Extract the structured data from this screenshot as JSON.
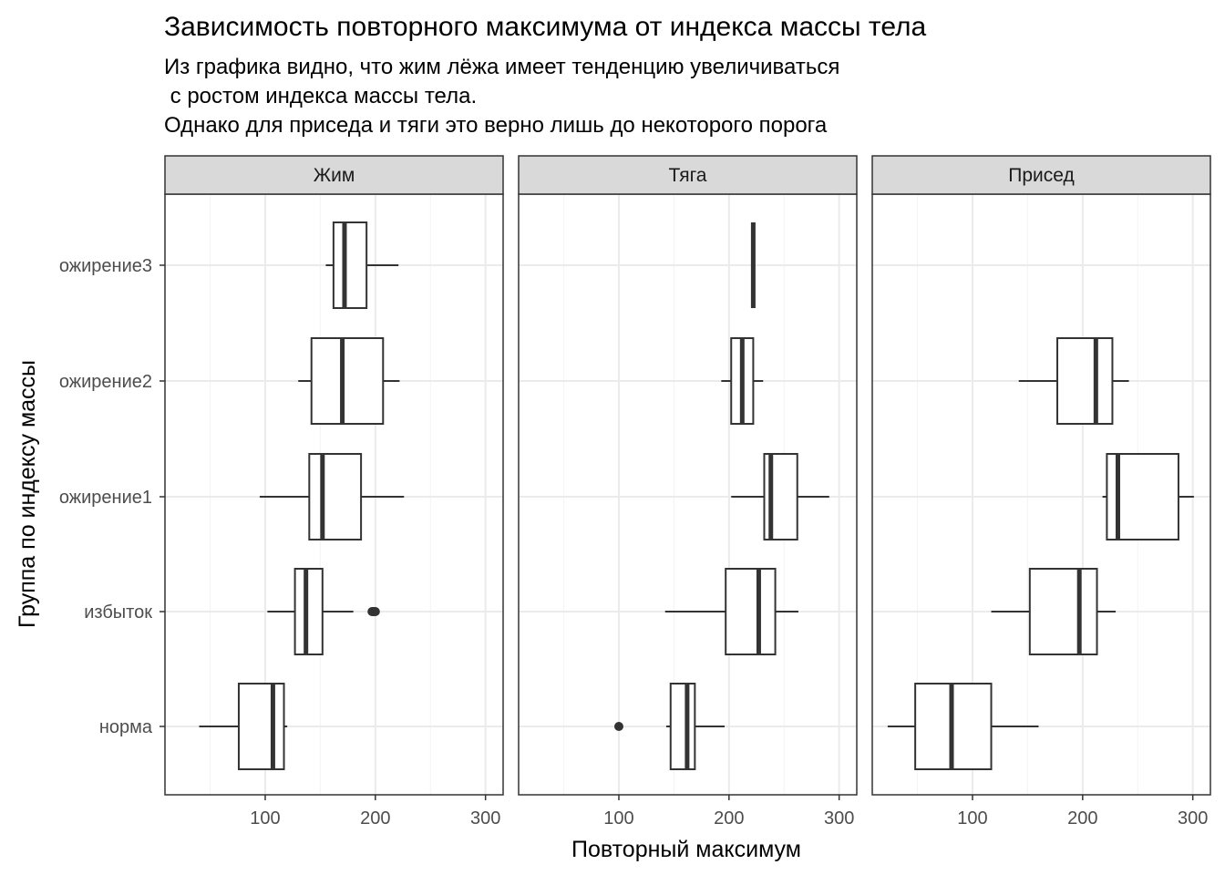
{
  "chart_data": {
    "type": "boxplot",
    "title": "Зависимость повторного максимума от индекса массы тела",
    "subtitle_lines": [
      "Из графика видно, что жим лёжа имеет тенденцию увеличиваться",
      " с ростом индекса массы тела.",
      "Однако для приседа и тяги это верно лишь до некоторого порога"
    ],
    "xlabel": "Повторный максимум",
    "ylabel": "Группа по индексу массы",
    "x_ticks": [
      "100",
      "200",
      "300"
    ],
    "xlim": [
      9,
      316
    ],
    "categories": [
      "норма",
      "избыток",
      "ожирение1",
      "ожирение2",
      "ожирение3"
    ],
    "facets": [
      {
        "name": "Жим",
        "boxes": [
          {
            "group": "норма",
            "min": 40,
            "q1": 76,
            "median": 107,
            "q3": 117,
            "max": 120,
            "outliers": []
          },
          {
            "group": "избыток",
            "min": 102,
            "q1": 127,
            "median": 137,
            "q3": 152,
            "max": 180,
            "outliers": [
              197,
              198,
              199,
              200
            ]
          },
          {
            "group": "ожирение1",
            "min": 95,
            "q1": 140,
            "median": 152,
            "q3": 187,
            "max": 226,
            "outliers": []
          },
          {
            "group": "ожирение2",
            "min": 130,
            "q1": 142,
            "median": 170,
            "q3": 207,
            "max": 222,
            "outliers": []
          },
          {
            "group": "ожирение3",
            "min": 155,
            "q1": 162,
            "median": 172,
            "q3": 192,
            "max": 221,
            "outliers": []
          }
        ]
      },
      {
        "name": "Тяга",
        "boxes": [
          {
            "group": "норма",
            "min": 143,
            "q1": 147,
            "median": 162,
            "q3": 169,
            "max": 196,
            "outliers": [
              100
            ]
          },
          {
            "group": "избыток",
            "min": 142,
            "q1": 197,
            "median": 227,
            "q3": 242,
            "max": 263,
            "outliers": []
          },
          {
            "group": "ожирение1",
            "min": 202,
            "q1": 232,
            "median": 238,
            "q3": 262,
            "max": 291,
            "outliers": []
          },
          {
            "group": "ожирение2",
            "min": 193,
            "q1": 202,
            "median": 212,
            "q3": 222,
            "max": 231,
            "outliers": []
          },
          {
            "group": "ожирение3",
            "min": 222,
            "q1": 222,
            "median": 222,
            "q3": 222,
            "max": 222,
            "outliers": []
          }
        ]
      },
      {
        "name": "Присед",
        "boxes": [
          {
            "group": "норма",
            "min": 23,
            "q1": 48,
            "median": 81,
            "q3": 117,
            "max": 160,
            "outliers": []
          },
          {
            "group": "избыток",
            "min": 117,
            "q1": 152,
            "median": 197,
            "q3": 213,
            "max": 230,
            "outliers": []
          },
          {
            "group": "ожирение1",
            "min": 218,
            "q1": 222,
            "median": 232,
            "q3": 287,
            "max": 301,
            "outliers": []
          },
          {
            "group": "ожирение2",
            "min": 142,
            "q1": 177,
            "median": 212,
            "q3": 227,
            "max": 242,
            "outliers": []
          },
          {
            "group": "ожирение3",
            "min": null,
            "q1": null,
            "median": null,
            "q3": null,
            "max": null,
            "outliers": []
          }
        ]
      }
    ],
    "colors": {
      "strip_fill": "#d9d9d9",
      "grid_major": "#ebebeb",
      "grid_minor": "#f5f5f5",
      "box_stroke": "#333333",
      "panel_border": "#333333"
    },
    "theme": "bw"
  }
}
